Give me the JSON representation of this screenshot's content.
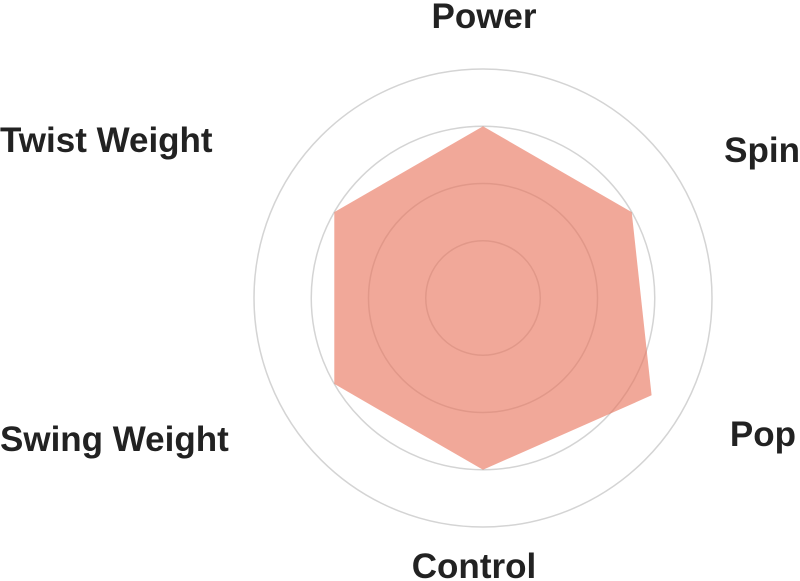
{
  "chart_data": {
    "type": "radar",
    "axes": [
      "Power",
      "Spin",
      "Pop",
      "Control",
      "Swing Weight",
      "Twist Weight"
    ],
    "values": [
      3,
      3,
      3.4,
      3,
      3,
      3
    ],
    "range": [
      0,
      4
    ],
    "rings": [
      1,
      2,
      3,
      4
    ],
    "grid": true,
    "fill_color": "#e8735a",
    "ring_color": "#d4d4d4"
  }
}
